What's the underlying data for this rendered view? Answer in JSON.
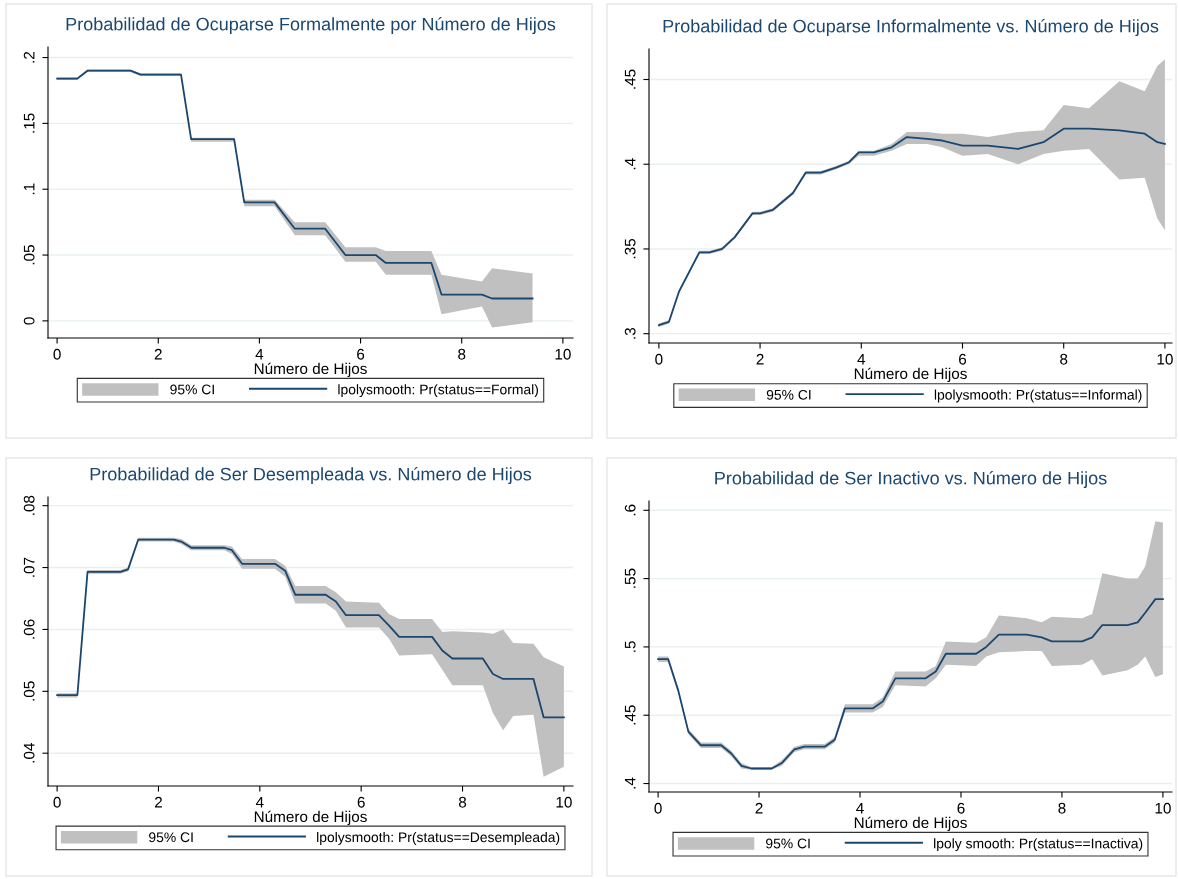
{
  "chart_data": [
    {
      "type": "line",
      "title": "Probabilidad de Ocuparse Formalmente por Número de Hijos",
      "xlabel": "Número de Hijos",
      "xlim": [
        -0.18,
        10.2
      ],
      "xticks": [
        0,
        2,
        4,
        6,
        8,
        10
      ],
      "ylim": [
        -0.013,
        0.208
      ],
      "yticks": [
        0,
        {
          "value": 0.05,
          "label": ".05"
        },
        {
          "value": 0.1,
          "label": ".1"
        },
        {
          "value": 0.15,
          "label": ".15"
        },
        {
          "value": 0.2,
          "label": ".2"
        }
      ],
      "grid": "y",
      "legend": "bottom",
      "annotations": [
        "95% CI"
      ],
      "x": [
        0,
        0.4,
        0.6,
        1.45,
        1.65,
        2.45,
        2.65,
        3.5,
        3.7,
        4.3,
        4.7,
        5.3,
        5.7,
        6.3,
        6.5,
        7.4,
        7.6,
        8.4,
        8.6,
        9.4
      ],
      "series": [
        {
          "name": "lpolysmooth: Pr(status==Formal)",
          "color": "#1a476f",
          "values": [
            0.184,
            0.184,
            0.19,
            0.19,
            0.187,
            0.187,
            0.138,
            0.138,
            0.09,
            0.09,
            0.07,
            0.07,
            0.05,
            0.05,
            0.044,
            0.044,
            0.02,
            0.02,
            0.017,
            0.017
          ],
          "lower": [
            0.183,
            0.183,
            0.189,
            0.189,
            0.186,
            0.186,
            0.136,
            0.136,
            0.087,
            0.087,
            0.065,
            0.065,
            0.045,
            0.045,
            0.035,
            0.035,
            0.005,
            0.011,
            -0.005,
            -0.001
          ],
          "upper": [
            0.185,
            0.185,
            0.191,
            0.191,
            0.188,
            0.188,
            0.139,
            0.139,
            0.092,
            0.092,
            0.075,
            0.075,
            0.056,
            0.056,
            0.053,
            0.053,
            0.035,
            0.03,
            0.04,
            0.036
          ]
        }
      ]
    },
    {
      "type": "line",
      "title": "Probabilidad de Ocuparse Informalmente vs. Número de Hijos",
      "xlabel": "Número de Hijos",
      "xlim": [
        -0.195,
        10.14
      ],
      "xticks": [
        0,
        2,
        4,
        6,
        8,
        10
      ],
      "ylim": [
        0.2945,
        0.468
      ],
      "yticks": [
        {
          "value": 0.3,
          "label": ".3"
        },
        {
          "value": 0.35,
          "label": ".35"
        },
        {
          "value": 0.4,
          "label": ".4"
        },
        {
          "value": 0.45,
          "label": ".45"
        }
      ],
      "grid": "y",
      "legend": "bottom",
      "annotations": [
        "95% CI"
      ],
      "x": [
        0,
        0.2,
        0.4,
        0.8,
        1.0,
        1.25,
        1.5,
        1.85,
        2.0,
        2.25,
        2.65,
        2.9,
        3.2,
        3.5,
        3.75,
        3.95,
        4.25,
        4.6,
        4.9,
        5.3,
        5.6,
        6.0,
        6.5,
        7.1,
        7.6,
        8.0,
        8.5,
        9.1,
        9.6,
        9.85,
        10
      ],
      "series": [
        {
          "name": "lpolysmooth: Pr(status==Informal)",
          "color": "#1a476f",
          "values": [
            0.305,
            0.307,
            0.325,
            0.348,
            0.348,
            0.35,
            0.357,
            0.371,
            0.371,
            0.373,
            0.383,
            0.395,
            0.395,
            0.398,
            0.401,
            0.407,
            0.407,
            0.41,
            0.416,
            0.415,
            0.414,
            0.411,
            0.411,
            0.409,
            0.413,
            0.421,
            0.421,
            0.42,
            0.418,
            0.413,
            0.412
          ],
          "lower": [
            0.304,
            0.306,
            0.324,
            0.347,
            0.347,
            0.349,
            0.356,
            0.37,
            0.37,
            0.372,
            0.382,
            0.394,
            0.394,
            0.397,
            0.4,
            0.405,
            0.405,
            0.408,
            0.412,
            0.412,
            0.41,
            0.405,
            0.406,
            0.4,
            0.406,
            0.408,
            0.409,
            0.391,
            0.392,
            0.368,
            0.361
          ],
          "upper": [
            0.306,
            0.308,
            0.326,
            0.349,
            0.349,
            0.351,
            0.358,
            0.372,
            0.372,
            0.374,
            0.384,
            0.396,
            0.396,
            0.399,
            0.402,
            0.408,
            0.408,
            0.412,
            0.419,
            0.419,
            0.418,
            0.418,
            0.416,
            0.419,
            0.42,
            0.435,
            0.433,
            0.449,
            0.443,
            0.458,
            0.462
          ]
        }
      ]
    },
    {
      "type": "line",
      "title": "Probabilidad de Ser Desempleada vs. Número de Hijos",
      "xlabel": "Número de Hijos",
      "xlim": [
        -0.18,
        10.18
      ],
      "xticks": [
        0,
        2,
        4,
        6,
        8,
        10
      ],
      "ylim": [
        0.0347,
        0.0814
      ],
      "yticks": [
        {
          "value": 0.04,
          "label": ".04"
        },
        {
          "value": 0.05,
          "label": ".05"
        },
        {
          "value": 0.06,
          "label": ".06"
        },
        {
          "value": 0.07,
          "label": ".07"
        },
        {
          "value": 0.08,
          "label": ".08"
        }
      ],
      "grid": "y",
      "legend": "bottom",
      "annotations": [
        "95% CI"
      ],
      "x": [
        0,
        0.4,
        0.6,
        1.25,
        1.4,
        1.6,
        2.3,
        2.45,
        2.65,
        3.3,
        3.45,
        3.65,
        4.3,
        4.5,
        4.7,
        5.3,
        5.5,
        5.7,
        6.35,
        6.55,
        6.75,
        7.4,
        7.6,
        7.8,
        8.4,
        8.6,
        8.8,
        9.0,
        9.4,
        9.6,
        10
      ],
      "series": [
        {
          "name": "lpolysmooth: Pr(status==Desempleada)",
          "color": "#1a476f",
          "values": [
            0.0494,
            0.0494,
            0.0693,
            0.0693,
            0.0697,
            0.0745,
            0.0745,
            0.0742,
            0.0732,
            0.0732,
            0.0728,
            0.0706,
            0.0706,
            0.0695,
            0.0656,
            0.0656,
            0.0645,
            0.0623,
            0.0623,
            0.0606,
            0.0588,
            0.0588,
            0.0566,
            0.0553,
            0.0553,
            0.0528,
            0.052,
            0.052,
            0.052,
            0.0458,
            0.0458
          ],
          "lower": [
            0.049,
            0.049,
            0.069,
            0.069,
            0.0694,
            0.0742,
            0.0742,
            0.0738,
            0.0728,
            0.0728,
            0.0722,
            0.0698,
            0.0698,
            0.0685,
            0.0642,
            0.0642,
            0.063,
            0.0603,
            0.0603,
            0.0585,
            0.0558,
            0.056,
            0.0535,
            0.051,
            0.051,
            0.0465,
            0.0437,
            0.046,
            0.0462,
            0.0362,
            0.0378
          ],
          "upper": [
            0.0497,
            0.0497,
            0.0696,
            0.0696,
            0.07,
            0.0748,
            0.0748,
            0.0746,
            0.0736,
            0.0736,
            0.0734,
            0.0714,
            0.0714,
            0.0703,
            0.067,
            0.067,
            0.066,
            0.0645,
            0.0643,
            0.0625,
            0.0617,
            0.0617,
            0.0596,
            0.0597,
            0.0595,
            0.0593,
            0.06,
            0.0578,
            0.0577,
            0.0555,
            0.054
          ]
        }
      ]
    },
    {
      "type": "line",
      "title": "Probabilidad de Ser Inactivo vs. Número de Hijos",
      "xlabel": "Número de Hijos",
      "xlim": [
        -0.18,
        10.18
      ],
      "xticks": [
        0,
        2,
        4,
        6,
        8,
        10
      ],
      "ylim": [
        0.3938,
        0.6068
      ],
      "yticks": [
        {
          "value": 0.4,
          "label": ".4"
        },
        {
          "value": 0.45,
          "label": ".45"
        },
        {
          "value": 0.5,
          "label": ".5"
        },
        {
          "value": 0.55,
          "label": ".55"
        },
        {
          "value": 0.6,
          "label": ".6"
        }
      ],
      "grid": "y",
      "legend": "bottom",
      "annotations": [
        "95% CI"
      ],
      "x": [
        0,
        0.2,
        0.4,
        0.6,
        0.85,
        1.25,
        1.45,
        1.65,
        1.85,
        2.25,
        2.45,
        2.7,
        2.9,
        3.3,
        3.5,
        3.7,
        4.25,
        4.45,
        4.7,
        5.3,
        5.5,
        5.7,
        6.3,
        6.5,
        6.75,
        7.3,
        7.6,
        7.8,
        8.4,
        8.6,
        8.8,
        9.3,
        9.5,
        9.65,
        9.85,
        10
      ],
      "series": [
        {
          "name": "lpoly smooth: Pr(status==Inactiva)",
          "color": "#1a476f",
          "values": [
            0.491,
            0.491,
            0.468,
            0.438,
            0.428,
            0.428,
            0.422,
            0.413,
            0.411,
            0.411,
            0.415,
            0.425,
            0.427,
            0.427,
            0.432,
            0.455,
            0.455,
            0.46,
            0.477,
            0.477,
            0.482,
            0.495,
            0.495,
            0.5,
            0.509,
            0.509,
            0.507,
            0.504,
            0.504,
            0.507,
            0.516,
            0.516,
            0.518,
            0.525,
            0.535,
            0.535
          ],
          "lower": [
            0.489,
            0.489,
            0.466,
            0.436,
            0.426,
            0.426,
            0.42,
            0.411,
            0.41,
            0.41,
            0.413,
            0.423,
            0.425,
            0.425,
            0.43,
            0.452,
            0.452,
            0.456,
            0.472,
            0.471,
            0.477,
            0.487,
            0.486,
            0.493,
            0.496,
            0.497,
            0.497,
            0.486,
            0.487,
            0.491,
            0.479,
            0.483,
            0.487,
            0.493,
            0.478,
            0.48
          ],
          "upper": [
            0.493,
            0.493,
            0.47,
            0.44,
            0.43,
            0.43,
            0.424,
            0.415,
            0.412,
            0.412,
            0.417,
            0.427,
            0.429,
            0.429,
            0.434,
            0.458,
            0.458,
            0.463,
            0.482,
            0.482,
            0.486,
            0.504,
            0.503,
            0.507,
            0.523,
            0.521,
            0.518,
            0.522,
            0.521,
            0.524,
            0.554,
            0.55,
            0.55,
            0.559,
            0.592,
            0.591
          ]
        }
      ]
    }
  ]
}
